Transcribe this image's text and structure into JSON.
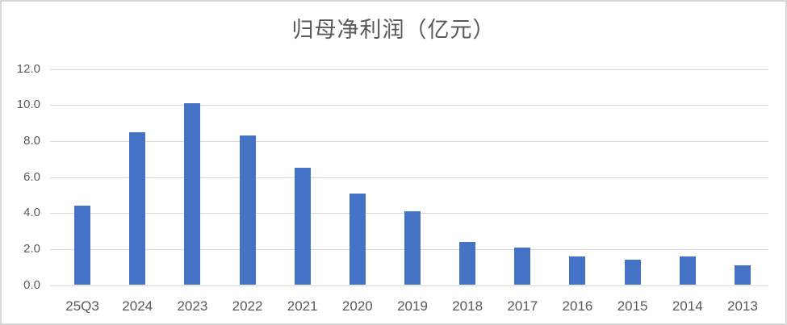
{
  "chart_data": {
    "type": "bar",
    "title": "归母净利润（亿元）",
    "categories": [
      "25Q3",
      "2024",
      "2023",
      "2022",
      "2021",
      "2020",
      "2019",
      "2018",
      "2017",
      "2016",
      "2015",
      "2014",
      "2013"
    ],
    "values": [
      4.4,
      8.5,
      10.1,
      8.3,
      6.5,
      5.1,
      4.1,
      2.4,
      2.1,
      1.6,
      1.4,
      1.6,
      1.1
    ],
    "xlabel": "",
    "ylabel": "",
    "ylim": [
      0,
      12
    ],
    "ytick_step": 2,
    "ytick_labels": [
      "0.0",
      "2.0",
      "4.0",
      "6.0",
      "8.0",
      "10.0",
      "12.0"
    ],
    "grid": true,
    "legend": false,
    "series_name": "归母净利润",
    "colors": {
      "bar": "#4472C4",
      "gridline": "#D9D9D9",
      "text": "#595959",
      "border": "#D6D6D6",
      "background": "#FFFFFF"
    }
  }
}
